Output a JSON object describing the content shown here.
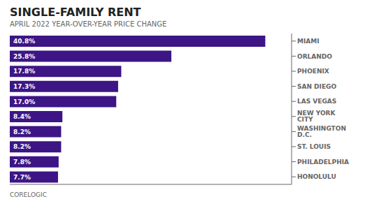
{
  "chart_data": {
    "type": "bar",
    "title": "SINGLE-FAMILY RENT",
    "subtitle": "APRIL 2022 YEAR-OVER-YEAR PRICE CHANGE",
    "annotations": [
      "CORELOGIC"
    ],
    "orientation": "horizontal",
    "categories": [
      "MIAMI",
      "ORLANDO",
      "PHOENIX",
      "SAN DIEGO",
      "LAS VEGAS",
      "NEW YORK CITY",
      "WASHINGTON D.C.",
      "ST. LOUIS",
      "PHILADELPHIA",
      "HONOLULU"
    ],
    "values": [
      40.8,
      25.8,
      17.8,
      17.3,
      17.0,
      8.4,
      8.2,
      8.2,
      7.8,
      7.7
    ],
    "value_labels": [
      "40.8%",
      "25.8%",
      "17.8%",
      "17.3%",
      "17.0%",
      "8.4%",
      "8.2%",
      "8.2%",
      "7.8%",
      "7.7%"
    ],
    "data_labels": true,
    "color": "#3d1585",
    "xlim": [
      0,
      45
    ],
    "tick_labels": "y",
    "grid": false
  }
}
